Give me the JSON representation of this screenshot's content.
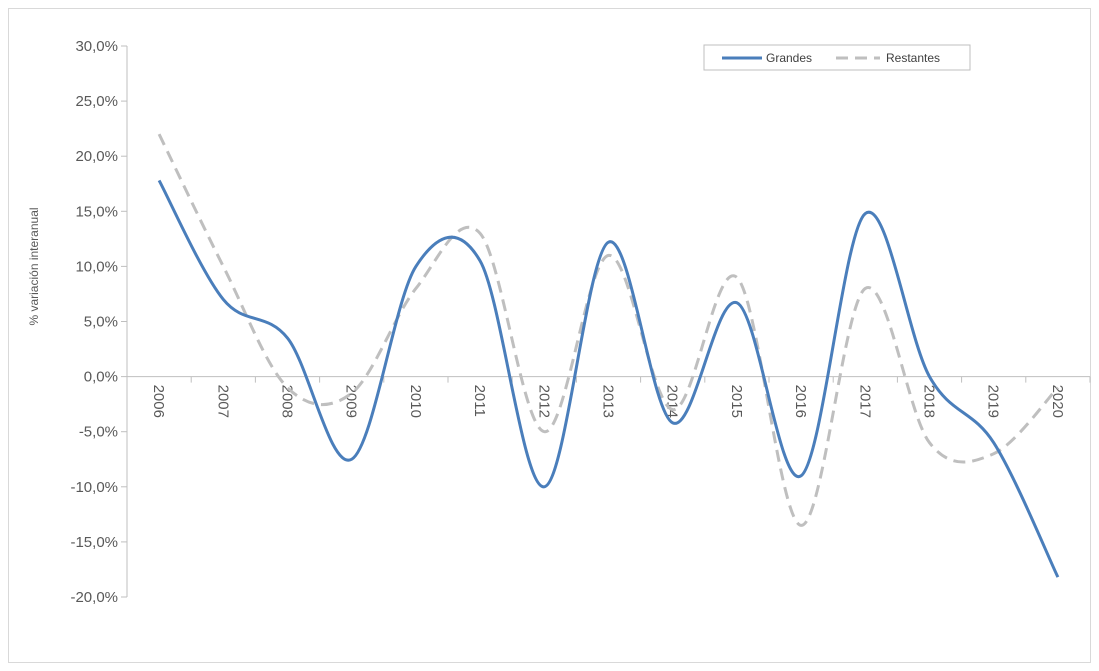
{
  "chart_data": {
    "type": "line",
    "categories": [
      "2006",
      "2007",
      "2008",
      "2009",
      "2010",
      "2011",
      "2012",
      "2013",
      "2014",
      "2015",
      "2016",
      "2017",
      "2018",
      "2019",
      "2020"
    ],
    "series": [
      {
        "name": "Grandes",
        "values": [
          17.8,
          7.0,
          3.5,
          -7.5,
          10.0,
          10.5,
          -10.0,
          12.2,
          -4.2,
          6.7,
          -9.0,
          14.8,
          0.0,
          -6.0,
          -18.2
        ],
        "color": "#4a7ebb",
        "style": "solid"
      },
      {
        "name": "Restantes",
        "values": [
          22.0,
          10.0,
          -1.0,
          -1.5,
          8.0,
          13.0,
          -5.0,
          11.0,
          -3.0,
          9.0,
          -13.5,
          8.0,
          -6.0,
          -7.0,
          -1.0
        ],
        "color": "#bfbfbf",
        "style": "dashed"
      }
    ],
    "ylabel": "% variación interanual",
    "ylim": [
      -20,
      30
    ],
    "yticks": [
      30,
      25,
      20,
      15,
      10,
      5,
      0,
      -5,
      -10,
      -15,
      -20
    ],
    "ytick_labels": [
      "30,0%",
      "25,0%",
      "20,0%",
      "15,0%",
      "10,0%",
      "5,0%",
      "0,0%",
      "-5,0%",
      "-10,0%",
      "-15,0%",
      "-20,0%"
    ],
    "legend_position": "top-right",
    "grid": false
  }
}
